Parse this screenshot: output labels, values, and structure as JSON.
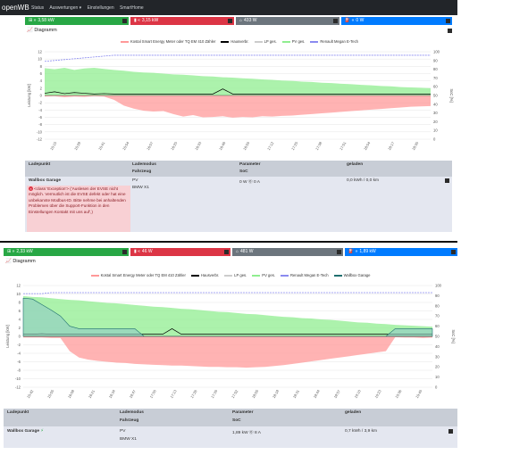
{
  "nav": {
    "brand": "openWB",
    "items": [
      "Status",
      "Auswertungen ▾",
      "Einstellungen",
      "SmartHome"
    ]
  },
  "panels": [
    {
      "status": {
        "grid": "3,58 kW",
        "battery": "3,15 kW",
        "house": "433 W",
        "ev": "0 W"
      },
      "diagram_title": "Diagramm",
      "legend": [
        "Kostal Smart Energy Meter oder TQ EM 410 Zähler",
        "Hausverbr.",
        "LP ges.",
        "PV ges.",
        "Renault Megan E-Tech"
      ],
      "table": {
        "headers": {
          "lp": "Ladepunkt",
          "mode": "Lademodus",
          "vehicle": "Fahrzeug",
          "param": "Parameter",
          "soc": "SoC",
          "charged": "geladen"
        },
        "row": {
          "name": "Wallbox Garage",
          "mode": "PV",
          "vehicle": "BMW X1",
          "param": "0 W ⓪ 0 A",
          "charged": "0,0 kWh / 0,0 km",
          "error": "<class 'Exception'> ('Auslesen der EVSE nicht möglich. Vermutlich ist die EVSE defekt oder hat eine unbekannte Modbus-ID. Bitte nehme bei anhaltenden Problemen über die Support-Funktion in den Einstellungen Kontakt mit uns auf',)"
        }
      },
      "chart_data": {
        "type": "area",
        "title": "",
        "ylabel": "Leistung [kW]",
        "y2label": "SoC [%]",
        "ylim": [
          -12,
          12
        ],
        "y2lim": [
          0,
          100
        ],
        "yticks": [
          "12",
          "10",
          "8",
          "6",
          "4",
          "2",
          "0",
          "-2",
          "-4",
          "-6",
          "-8",
          "-10",
          "-12"
        ],
        "y2ticks": [
          "100",
          "90",
          "80",
          "70",
          "60",
          "50",
          "40",
          "30",
          "20",
          "10",
          "0"
        ],
        "xticks": [
          "15:15",
          "15:28",
          "15:41",
          "15:54",
          "16:07",
          "16:20",
          "16:33",
          "16:46",
          "16:59",
          "17:12",
          "17:25",
          "17:38",
          "17:51",
          "18:04",
          "18:17",
          "18:30"
        ],
        "series": [
          {
            "name": "PV ges.",
            "color": "#90ee90",
            "values": [
              7.5,
              7.2,
              7.6,
              7.0,
              7.4,
              7.6,
              7.3,
              7.0,
              6.8,
              6.5,
              6.3,
              6.2,
              6.0,
              5.8,
              5.7,
              5.5,
              5.3,
              5.2,
              5.0,
              4.9,
              4.7,
              4.6,
              4.4,
              4.3,
              4.1,
              4.0,
              3.8,
              3.7,
              3.5,
              3.4,
              3.2,
              3.1,
              2.9,
              2.8,
              2.6,
              2.5,
              2.3,
              2.2,
              2.1,
              2.0
            ]
          },
          {
            "name": "Kostal Smart Energy Meter oder TQ EM 410 Zähler",
            "color": "#ff9999",
            "values": [
              -0.3,
              -0.2,
              -0.5,
              -0.3,
              -0.4,
              -0.2,
              -0.3,
              -1.2,
              -2.8,
              -3.6,
              -4.2,
              -4.4,
              -4.3,
              -5.1,
              -5.8,
              -5.4,
              -6.0,
              -5.9,
              -5.7,
              -6.1,
              -5.9,
              -6.0,
              -5.7,
              -5.8,
              -5.6,
              -5.5,
              -5.3,
              -5.1,
              -4.9,
              -4.7,
              -4.5,
              -4.3,
              -4.1,
              -3.9,
              -3.7,
              -3.5,
              -3.3,
              -3.1,
              -3.0,
              -2.9
            ]
          },
          {
            "name": "Hausverbr.",
            "color": "#000000",
            "values": [
              0.6,
              1.0,
              0.5,
              0.8,
              0.6,
              0.4,
              0.5,
              0.4,
              0.4,
              0.4,
              0.4,
              0.4,
              0.4,
              0.4,
              0.4,
              0.4,
              0.4,
              0.4,
              1.8,
              0.4,
              0.4,
              0.4,
              0.4,
              0.4,
              0.4,
              0.4,
              0.4,
              0.4,
              0.4,
              0.4,
              0.4,
              0.4,
              0.4,
              0.4,
              0.4,
              0.4,
              0.4,
              0.4,
              0.4,
              0.4
            ]
          },
          {
            "name": "Renault Megan E-Tech",
            "color": "#8a8af0",
            "soc_values": [
              89,
              90,
              91,
              92,
              93,
              94,
              95,
              96,
              96,
              96,
              96,
              96,
              96,
              96,
              96,
              96,
              96,
              96,
              96,
              96,
              96,
              96,
              96,
              96,
              96,
              96,
              96,
              96,
              96,
              96,
              96,
              96,
              96,
              96,
              96,
              96,
              96,
              96,
              96,
              96
            ]
          }
        ]
      }
    },
    {
      "status": {
        "grid": "2,33 kW",
        "battery": "46 W",
        "house": "481 W",
        "ev": "1,89 kW"
      },
      "diagram_title": "Diagramm",
      "legend": [
        "Kostal Smart Energy Meter oder TQ EM 410 Zähler",
        "Hausverbr.",
        "LP ges.",
        "PV ges.",
        "Renault Megan E-Tech",
        "Wallbox Garage"
      ],
      "table": {
        "headers": {
          "lp": "Ladepunkt",
          "mode": "Lademodus",
          "vehicle": "Fahrzeug",
          "param": "Parameter",
          "soc": "SoC",
          "charged": "geladen"
        },
        "row": {
          "name": "Wallbox Garage",
          "mode": "PV",
          "vehicle": "BMW X1",
          "param": "1,89 kW ⓪ 8 A",
          "charged": "0,7 kWh / 3,9 km",
          "error": ""
        }
      },
      "chart_data": {
        "type": "area",
        "title": "",
        "ylabel": "Leistung [kW]",
        "y2label": "SoC [%]",
        "ylim": [
          -12,
          12
        ],
        "y2lim": [
          0,
          100
        ],
        "yticks": [
          "12",
          "10",
          "8",
          "6",
          "4",
          "2",
          "0",
          "-2",
          "-4",
          "-6",
          "-8",
          "-10",
          "-12"
        ],
        "y2ticks": [
          "100",
          "90",
          "80",
          "70",
          "60",
          "50",
          "40",
          "30",
          "20",
          "10",
          "0"
        ],
        "xticks": [
          "15:42",
          "15:55",
          "16:08",
          "16:21",
          "16:34",
          "16:47",
          "17:00",
          "17:13",
          "17:26",
          "17:39",
          "17:52",
          "18:05",
          "18:18",
          "18:31",
          "18:44",
          "18:57",
          "19:10",
          "19:23",
          "19:36",
          "19:49"
        ],
        "series": [
          {
            "name": "PV ges.",
            "color": "#90ee90",
            "values": [
              9.5,
              9.3,
              9.2,
              9.0,
              8.8,
              8.6,
              8.5,
              8.3,
              8.1,
              7.9,
              7.8,
              7.6,
              7.4,
              7.2,
              7.0,
              6.9,
              6.7,
              6.5,
              6.4,
              6.2,
              6.0,
              5.8,
              5.7,
              5.5,
              5.3,
              5.2,
              5.0,
              4.8,
              4.6,
              4.5,
              4.3,
              4.2,
              4.0,
              3.9,
              3.7,
              3.5,
              3.3,
              3.2,
              3.0,
              2.9,
              2.7,
              2.6,
              2.5,
              2.4,
              2.3
            ]
          },
          {
            "name": "Kostal Smart Energy Meter oder TQ EM 410 Zähler",
            "color": "#ff9999",
            "values": [
              -0.3,
              -0.3,
              -0.3,
              -0.4,
              -0.4,
              -3.5,
              -5.0,
              -5.5,
              -5.8,
              -6.0,
              -6.2,
              -6.3,
              -6.5,
              -6.6,
              -6.7,
              -6.8,
              -6.9,
              -6.9,
              -7.0,
              -7.1,
              -7.2,
              -7.2,
              -7.3,
              -7.3,
              -7.4,
              -7.3,
              -7.2,
              -7.0,
              -6.8,
              -6.5,
              -6.2,
              -5.9,
              -5.6,
              -5.3,
              -5.0,
              -4.7,
              -4.4,
              -4.1,
              -3.8,
              -3.5,
              -0.2,
              -0.3,
              -0.3,
              -0.4,
              -0.3
            ]
          },
          {
            "name": "Hausverbr.",
            "color": "#000000",
            "values": [
              0.5,
              0.5,
              0.6,
              0.5,
              0.5,
              0.5,
              0.5,
              0.5,
              0.5,
              0.5,
              0.5,
              0.5,
              0.5,
              0.5,
              0.5,
              0.5,
              1.8,
              0.5,
              0.5,
              0.5,
              0.5,
              0.5,
              0.5,
              0.5,
              0.5,
              0.5,
              0.5,
              0.5,
              0.5,
              0.5,
              0.5,
              0.5,
              0.5,
              0.5,
              0.5,
              0.5,
              0.5,
              0.5,
              0.5,
              0.5,
              0.5,
              0.5,
              0.5,
              0.5,
              0.5
            ]
          },
          {
            "name": "Wallbox Garage",
            "color": "#1f6f6f",
            "values": [
              9.0,
              8.8,
              7.5,
              6.2,
              4.8,
              2.4,
              1.8,
              1.8,
              1.8,
              1.8,
              1.8,
              1.8,
              1.8,
              0.0,
              0.0,
              0.0,
              0.0,
              0.0,
              0.0,
              0.0,
              0.0,
              0.0,
              0.0,
              0.0,
              0.0,
              0.0,
              0.0,
              0.0,
              0.0,
              0.0,
              0.0,
              0.0,
              0.0,
              0.0,
              0.0,
              0.0,
              0.0,
              0.0,
              0.0,
              0.0,
              1.8,
              1.8,
              1.8,
              1.8,
              1.8
            ]
          },
          {
            "name": "Renault Megan E-Tech",
            "color": "#8a8af0",
            "soc_values": [
              92,
              92,
              92,
              93,
              93,
              93,
              93,
              93,
              93,
              93,
              93,
              93,
              93,
              93,
              93,
              93,
              93,
              93,
              93,
              93,
              93,
              93,
              93,
              93,
              93,
              93,
              93,
              93,
              93,
              93,
              93,
              93,
              93,
              93,
              93,
              93,
              93,
              93,
              93,
              93,
              93,
              93,
              93,
              93,
              93
            ]
          }
        ]
      }
    }
  ]
}
